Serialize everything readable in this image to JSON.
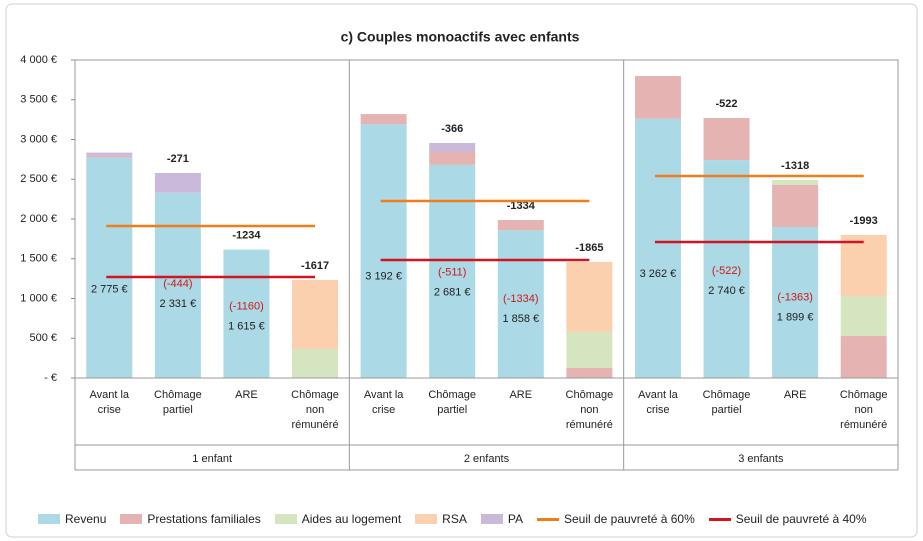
{
  "chart_data": {
    "type": "bar",
    "stacked": true,
    "title": "c) Couples monoactifs avec enfants",
    "groups": [
      "1 enfant",
      "2 enfants",
      "3 enfants"
    ],
    "categories": [
      "Avant la crise",
      "Chômage partiel",
      "ARE",
      "Chômage non rémunéré",
      "Avant la crise",
      "Chômage partiel",
      "ARE",
      "Chômage non rémunéré",
      "Avant la crise",
      "Chômage partiel",
      "ARE",
      "Chômage non rémunéré"
    ],
    "series": [
      {
        "name": "Revenu",
        "color": "#abd9e5",
        "values": [
          2775,
          2331,
          1615,
          0,
          3192,
          2681,
          1858,
          0,
          3262,
          2740,
          1899,
          0
        ],
        "value_labels": [
          "2 775 €",
          "2 331 €",
          "1 615 €",
          null,
          "3 192 €",
          "2 681 €",
          "1 858 €",
          null,
          "3 262 €",
          "2 740 €",
          "1 899 €",
          null
        ]
      },
      {
        "name": "Prestations familiales",
        "color": "#e6b3b3",
        "values": [
          20,
          0,
          0,
          0,
          128,
          162,
          129,
          126,
          537,
          530,
          529,
          528
        ]
      },
      {
        "name": "Aides au logement",
        "color": "#d5e5bf",
        "values": [
          0,
          0,
          0,
          365,
          0,
          0,
          0,
          453,
          0,
          0,
          62,
          503
        ]
      },
      {
        "name": "RSA",
        "color": "#fbd0ae",
        "values": [
          0,
          0,
          0,
          868,
          0,
          0,
          0,
          880,
          0,
          0,
          0,
          768
        ]
      },
      {
        "name": "PA",
        "color": "#cbb9d9",
        "values": [
          40,
          248,
          0,
          0,
          0,
          113,
          0,
          0,
          0,
          0,
          0,
          0
        ]
      }
    ],
    "thresholds": [
      {
        "name": "Seuil de pauvreté à 60%",
        "color": "#f07d1a",
        "values": [
          1912,
          2226,
          2541
        ]
      },
      {
        "name": "Seuil de pauvreté à 40%",
        "color": "#cf1620",
        "values": [
          1270,
          1484,
          1711
        ]
      }
    ],
    "diff_labels": [
      null,
      "-271",
      "-1234",
      "-1617",
      null,
      "-366",
      "-1334",
      "-1865",
      null,
      "-522",
      "-1318",
      "-1993"
    ],
    "loss_labels": [
      null,
      "(-444)",
      "(-1160)",
      null,
      null,
      "(-511)",
      "(-1334)",
      null,
      null,
      "(-522)",
      "(-1363)",
      null
    ],
    "ylim": [
      0,
      4000
    ],
    "yticks": [
      {
        "value": 0,
        "label": "-  €"
      },
      {
        "value": 500,
        "label": "500 €"
      },
      {
        "value": 1000,
        "label": "1 000 €"
      },
      {
        "value": 1500,
        "label": "1 500 €"
      },
      {
        "value": 2000,
        "label": "2 000 €"
      },
      {
        "value": 2500,
        "label": "2 500 €"
      },
      {
        "value": 3000,
        "label": "3 000 €"
      },
      {
        "value": 3500,
        "label": "3 500 €"
      },
      {
        "value": 4000,
        "label": "4 000 €"
      }
    ]
  }
}
